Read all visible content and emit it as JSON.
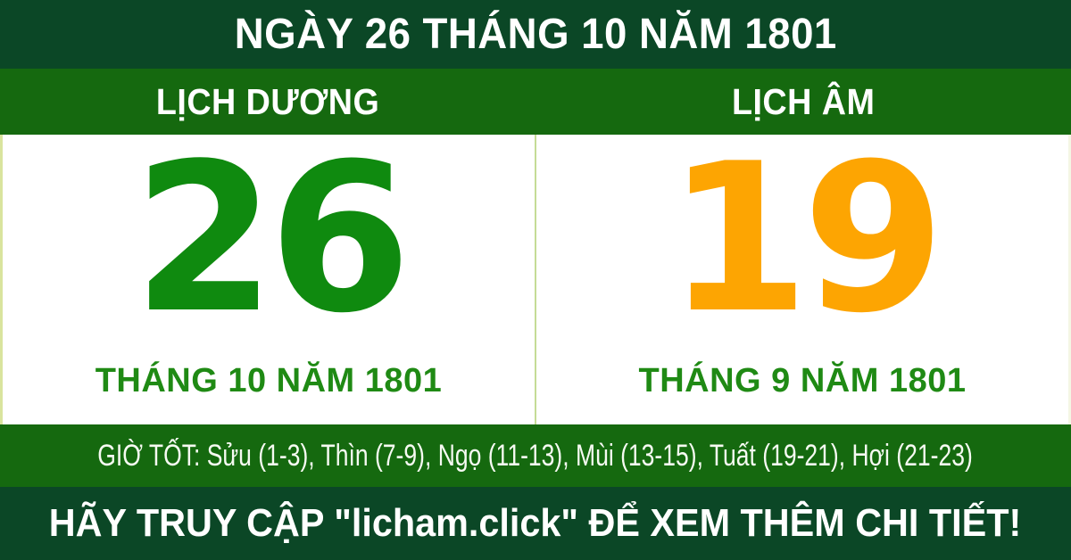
{
  "colors": {
    "dark_green": "#0B4726",
    "bright_green": "#15690F",
    "solar_day": "#0F8A0F",
    "lunar_day": "#FDA502",
    "month_label": "#1F8A14",
    "divider": "#C5DC96"
  },
  "header": {
    "title": "NGÀY 26 THÁNG 10 NĂM 1801"
  },
  "solar": {
    "label": "LỊCH DƯƠNG",
    "day": "26",
    "month_year": "THÁNG 10 NĂM 1801"
  },
  "lunar": {
    "label": "LỊCH ÂM",
    "day": "19",
    "month_year": "THÁNG 9 NĂM 1801"
  },
  "good_hours": {
    "label": "GIỜ TỐT:",
    "hours": [
      "Sửu (1-3)",
      "Thìn (7-9)",
      "Ngọ (11-13)",
      "Mùi (13-15)",
      "Tuất (19-21)",
      "Hợi (21-23)"
    ],
    "display": "GIỜ TỐT: Sửu (1-3), Thìn (7-9), Ngọ (11-13), Mùi (13-15), Tuất (19-21), Hợi (21-23)"
  },
  "footer": {
    "text": "HÃY TRUY CẬP \"licham.click\" ĐỂ XEM THÊM CHI TIẾT!"
  }
}
